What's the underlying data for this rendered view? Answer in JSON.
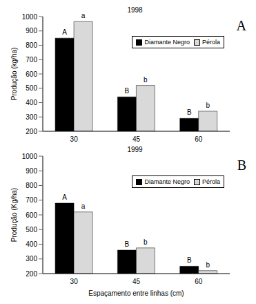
{
  "chart_data": [
    {
      "type": "bar",
      "title": "1998",
      "y_label": "Produção (kg/ha)",
      "categories": [
        "30",
        "45",
        "60"
      ],
      "series": [
        {
          "name": "Diamante Negro",
          "color": "#000000",
          "values": [
            850,
            440,
            290
          ]
        },
        {
          "name": "Pérola",
          "color": "#d9d9d9",
          "values": [
            965,
            520,
            340
          ]
        }
      ],
      "ylim": [
        200,
        1000
      ],
      "yticks": [
        200,
        300,
        400,
        500,
        600,
        700,
        800,
        900,
        1000
      ],
      "legend": "top-right",
      "annotations": [
        {
          "text": "A"
        },
        {
          "text": "A",
          "series": "Diamante Negro",
          "category": "30"
        },
        {
          "text": "a",
          "series": "Pérola",
          "category": "30"
        },
        {
          "text": "B",
          "series": "Diamante Negro",
          "category": "45"
        },
        {
          "text": "b",
          "series": "Pérola",
          "category": "45"
        },
        {
          "text": "B",
          "series": "Diamante Negro",
          "category": "60"
        },
        {
          "text": "b",
          "series": "Pérola",
          "category": "60"
        }
      ]
    },
    {
      "type": "bar",
      "title": "1999",
      "y_label": "Produção (Kg/ha)",
      "x_label": "Espaçamento entre linhas (cm)",
      "categories": [
        "30",
        "45",
        "60"
      ],
      "series": [
        {
          "name": "Diamante Negro",
          "color": "#000000",
          "values": [
            680,
            360,
            250
          ]
        },
        {
          "name": "Pérola",
          "color": "#d9d9d9",
          "values": [
            620,
            375,
            220
          ]
        }
      ],
      "ylim": [
        200,
        1000
      ],
      "yticks": [
        200,
        300,
        400,
        500,
        600,
        700,
        800,
        900,
        1000
      ],
      "legend": "top-right",
      "annotations": [
        {
          "text": "B"
        },
        {
          "text": "A",
          "series": "Diamante Negro",
          "category": "30"
        },
        {
          "text": "a",
          "series": "Pérola",
          "category": "30"
        },
        {
          "text": "B",
          "series": "Diamante Negro",
          "category": "45"
        },
        {
          "text": "b",
          "series": "Pérola",
          "category": "45"
        },
        {
          "text": "B",
          "series": "Diamante Negro",
          "category": "60"
        },
        {
          "text": "b",
          "series": "Pérola",
          "category": "60"
        }
      ]
    }
  ]
}
